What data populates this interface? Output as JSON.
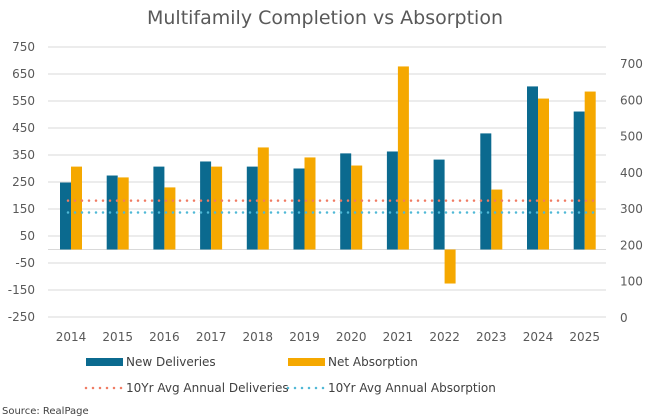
{
  "chart_data": {
    "type": "bar",
    "title": "Multifamily Completion vs Absorption",
    "categories": [
      "2014",
      "2015",
      "2016",
      "2017",
      "2018",
      "2019",
      "2020",
      "2021",
      "2022",
      "2023",
      "2024",
      "2025"
    ],
    "series": [
      {
        "name": "New Deliveries",
        "type": "bar",
        "axis": "left",
        "color": "#0b6a8f",
        "values": [
          248,
          274,
          307,
          326,
          307,
          300,
          356,
          363,
          333,
          430,
          604,
          511
        ]
      },
      {
        "name": "Net Absorption",
        "type": "bar",
        "axis": "left",
        "color": "#f5a800",
        "values": [
          307,
          267,
          230,
          307,
          378,
          341,
          311,
          678,
          -126,
          222,
          559,
          585
        ]
      },
      {
        "name": "10Yr Avg Annual Deliveries",
        "type": "line",
        "style": "dotted",
        "axis": "left",
        "color": "#f07b63",
        "value": 181
      },
      {
        "name": "10Yr Avg Annual Absorption",
        "type": "line",
        "style": "dotted",
        "axis": "left",
        "color": "#4fb8d6",
        "value": 137
      }
    ],
    "left_axis": {
      "ticks": [
        750,
        650,
        550,
        450,
        350,
        250,
        150,
        50,
        -50,
        -150,
        -250
      ],
      "tick_labels": [
        "750",
        "650",
        "550",
        "450",
        "350",
        "250",
        "150",
        "50",
        "-50",
        "-150",
        "-250"
      ],
      "ylim": [
        -250,
        750
      ]
    },
    "right_axis": {
      "ticks": [
        700,
        600,
        500,
        400,
        300,
        200,
        100,
        0
      ],
      "tick_labels": [
        "700",
        "600",
        "500",
        "400",
        "300",
        "200",
        "100",
        "0"
      ],
      "ylim": [
        0,
        700
      ]
    },
    "grid": true,
    "legend": {
      "placement": "bottom",
      "items": [
        {
          "label": "New Deliveries",
          "kind": "bar",
          "color": "#0b6a8f"
        },
        {
          "label": "Net Absorption",
          "kind": "bar",
          "color": "#f5a800"
        },
        {
          "label": "10Yr Avg Annual Deliveries",
          "kind": "dotted",
          "color": "#f07b63"
        },
        {
          "label": "10Yr Avg Annual Absorption",
          "kind": "dotted",
          "color": "#4fb8d6"
        }
      ]
    },
    "xlabel": "",
    "ylabel": "",
    "source": "Source: RealPage"
  }
}
